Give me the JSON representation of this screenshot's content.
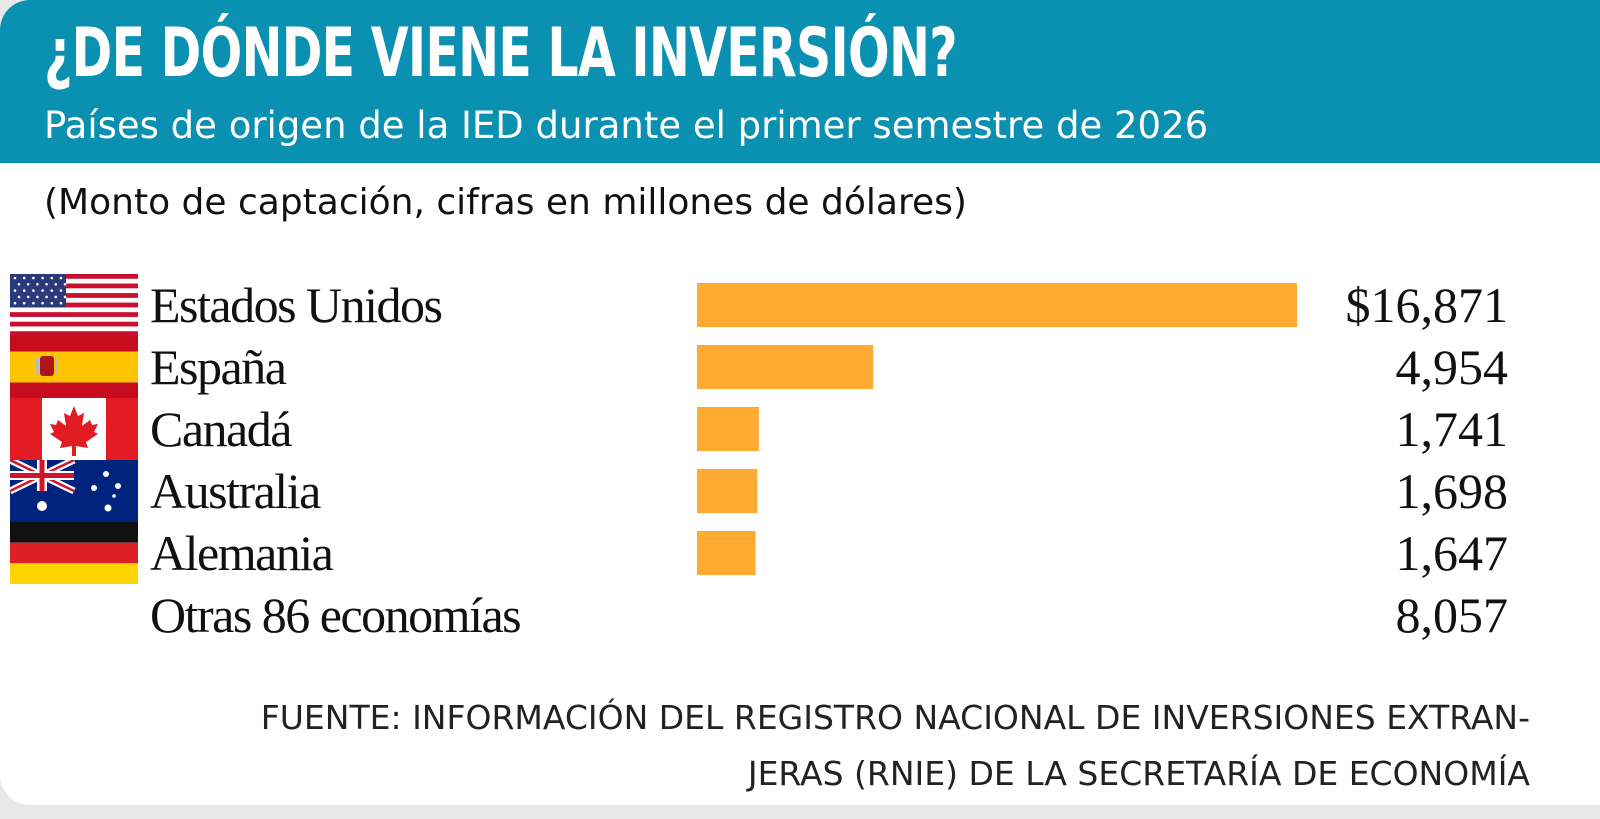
{
  "header": {
    "title": "¿DE DÓNDE VIENE LA INVERSIÓN?",
    "subtitle": "Países de origen de la IED durante el primer semestre de 2026"
  },
  "unit_note": "(Monto de captación, cifras en millones de dólares)",
  "source": {
    "line1": "FUENTE: INFORMACIÓN DEL REGISTRO NACIONAL DE INVERSIONES EXTRAN-",
    "line2": "JERAS (RNIE) DE LA SECRETARÍA DE ECONOMÍA"
  },
  "colors": {
    "header_bg": "#0a90b0",
    "bar": "#ffab33",
    "text": "#111111"
  },
  "chart_data": {
    "type": "bar",
    "orientation": "horizontal",
    "categories": [
      "Estados Unidos",
      "España",
      "Canadá",
      "Australia",
      "Alemania",
      "Otras 86 economías"
    ],
    "values": [
      16871,
      4954,
      1741,
      1698,
      1647,
      8057
    ],
    "value_labels": [
      "$16,871",
      "4,954",
      "1,741",
      "1,698",
      "1,647",
      "8,057"
    ],
    "bar_drawn": [
      true,
      true,
      true,
      true,
      true,
      false
    ],
    "flags": [
      "usa-flag-icon",
      "spain-flag-icon",
      "canada-flag-icon",
      "australia-flag-icon",
      "germany-flag-icon",
      ""
    ],
    "title": "",
    "xlabel": "",
    "ylabel": "",
    "xlim": [
      0,
      16871
    ],
    "grid": false,
    "legend": "none"
  }
}
